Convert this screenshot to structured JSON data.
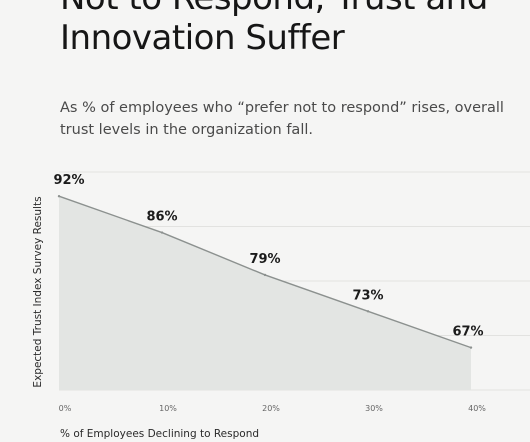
{
  "header": {
    "title_line1": "Not to Respond, Trust and",
    "title_line2": "Innovation Suffer",
    "subtitle_line1": "As % of employees who “prefer not to respond” rises, overall",
    "subtitle_line2": "trust levels in the organization fall."
  },
  "colors": {
    "line": "#8c918f",
    "area": "#e3e5e3",
    "grid": "#e2e2e0",
    "background": "#f5f5f4"
  },
  "chart_data": {
    "type": "area",
    "x": [
      0,
      10,
      20,
      30,
      40
    ],
    "x_tick_labels": [
      "0%",
      "10%",
      "20%",
      "30%",
      "40%"
    ],
    "values": [
      92,
      86,
      79,
      73,
      67
    ],
    "data_labels": [
      "92%",
      "86%",
      "79%",
      "73%",
      "67%"
    ],
    "xlabel": "% of Employees Declining to Respond",
    "ylabel": "Expected Trust Index Survey Results",
    "xlim": [
      0,
      40
    ],
    "ylim": [
      60,
      96
    ],
    "grid": true,
    "y_tick_labels_shown": false
  }
}
